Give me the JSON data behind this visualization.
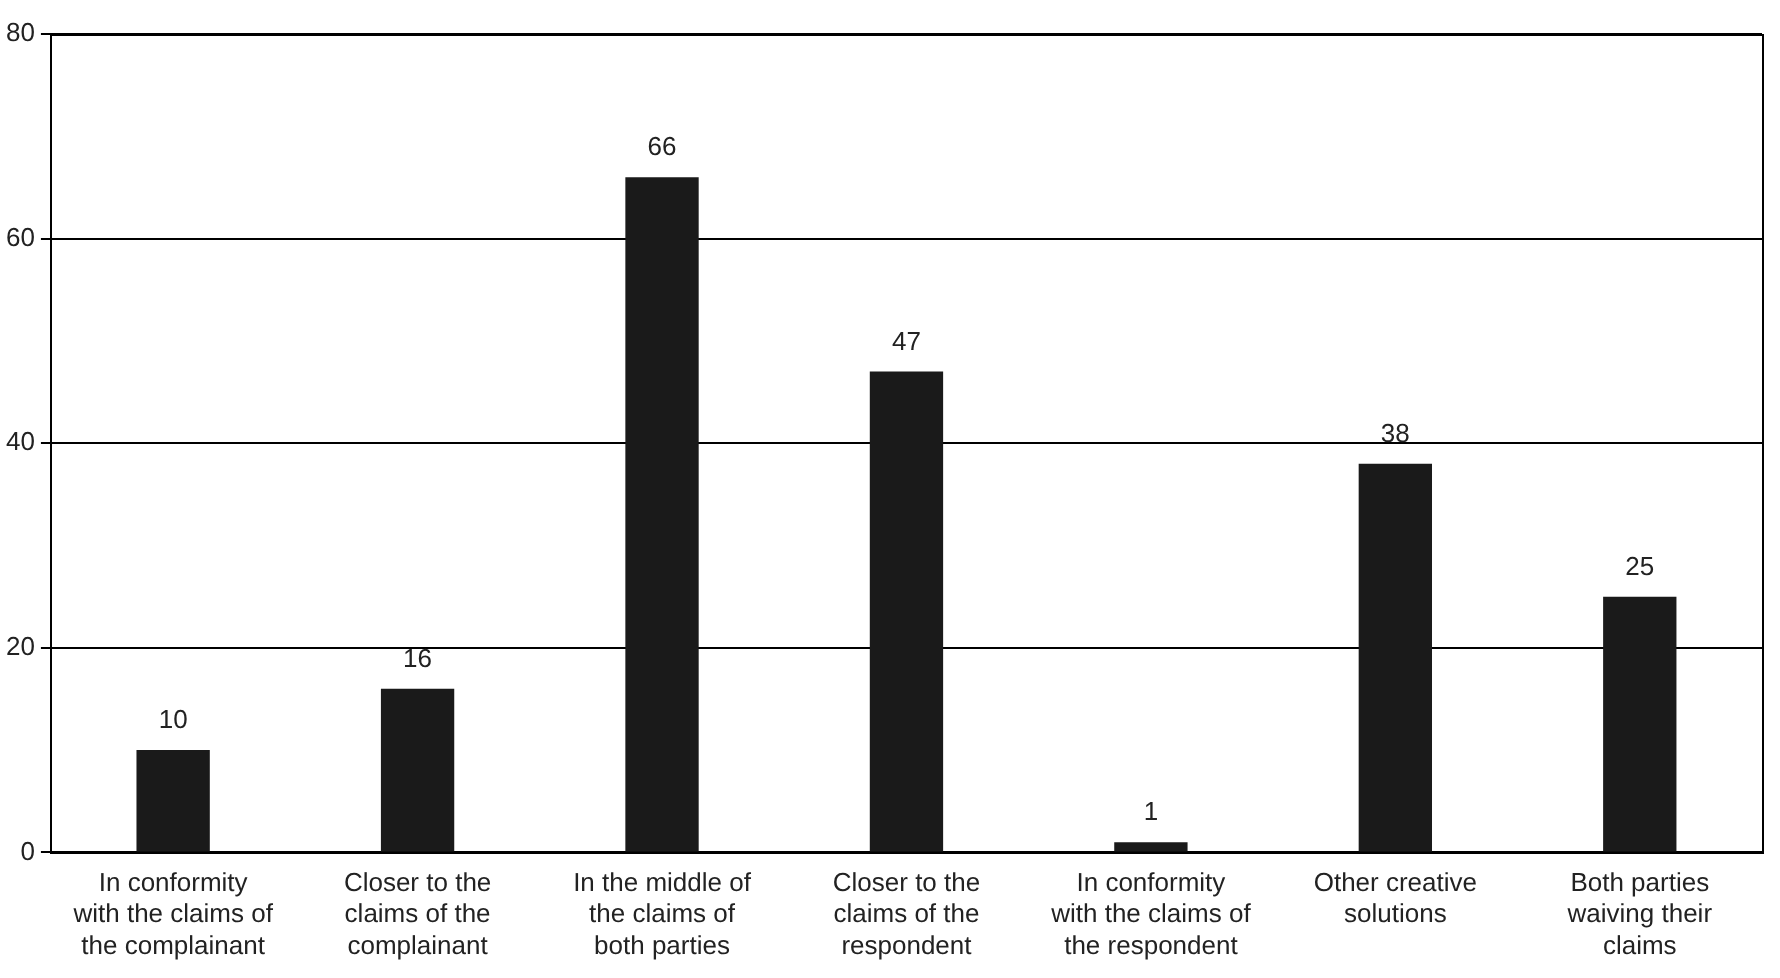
{
  "chart_data": {
    "type": "bar",
    "categories": [
      "In conformity with the claims of the complainant",
      "Closer to the claims of the complainant",
      "In the middle of the claims of both parties",
      "Closer to the claims of the respondent",
      "In conformity with the claims of the respondent",
      "Other creative solutions",
      "Both parties waiving their claims"
    ],
    "values": [
      10,
      16,
      66,
      47,
      1,
      38,
      25
    ],
    "color": "#1a1a1a",
    "ylim": [
      0,
      80
    ],
    "yticks": [
      0,
      20,
      40,
      60,
      80
    ],
    "grid": "y",
    "data_labels": true,
    "legend": false
  }
}
